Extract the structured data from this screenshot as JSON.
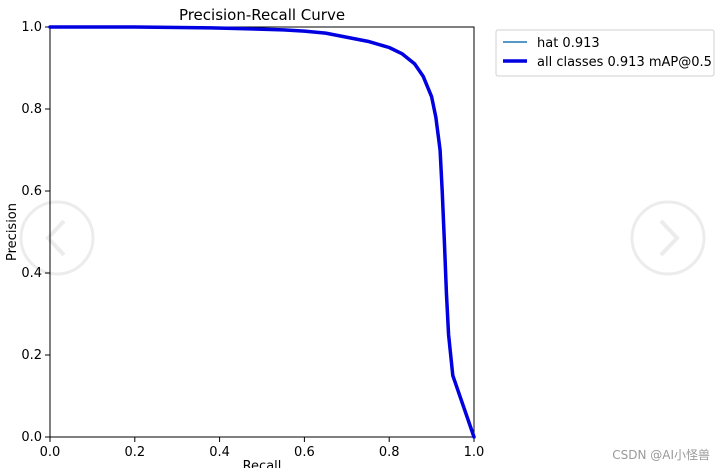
{
  "chart_data": {
    "type": "line",
    "title": "Precision-Recall Curve",
    "xlabel": "Recall",
    "ylabel": "Precision",
    "xlim": [
      0.0,
      1.0
    ],
    "ylim": [
      0.0,
      1.0
    ],
    "x_ticks": [
      "0.0",
      "0.2",
      "0.4",
      "0.6",
      "0.8",
      "1.0"
    ],
    "y_ticks": [
      "0.0",
      "0.2",
      "0.4",
      "0.6",
      "0.8",
      "1.0"
    ],
    "grid": false,
    "legend_position": "outside-top-right",
    "series": [
      {
        "name": "hat 0.913",
        "color": "#1f77b4",
        "style": "thin",
        "x": [
          0.0,
          0.2,
          0.38,
          0.45,
          0.55,
          0.6,
          0.65,
          0.7,
          0.75,
          0.8,
          0.83,
          0.86,
          0.88,
          0.9,
          0.91,
          0.92,
          0.925,
          0.93,
          0.935,
          0.94,
          0.95,
          1.0
        ],
        "y": [
          1.0,
          1.0,
          0.998,
          0.996,
          0.993,
          0.99,
          0.985,
          0.975,
          0.965,
          0.95,
          0.935,
          0.91,
          0.88,
          0.83,
          0.78,
          0.7,
          0.6,
          0.48,
          0.35,
          0.25,
          0.15,
          0.0
        ]
      },
      {
        "name": "all classes 0.913 mAP@0.5",
        "color": "#0000e0",
        "style": "thick",
        "x": [
          0.0,
          0.2,
          0.38,
          0.45,
          0.55,
          0.6,
          0.65,
          0.7,
          0.75,
          0.8,
          0.83,
          0.86,
          0.88,
          0.9,
          0.91,
          0.92,
          0.925,
          0.93,
          0.935,
          0.94,
          0.95,
          1.0
        ],
        "y": [
          1.0,
          1.0,
          0.998,
          0.996,
          0.993,
          0.99,
          0.985,
          0.975,
          0.965,
          0.95,
          0.935,
          0.91,
          0.88,
          0.83,
          0.78,
          0.7,
          0.6,
          0.48,
          0.35,
          0.25,
          0.15,
          0.0
        ]
      }
    ]
  },
  "watermark": {
    "text": "CSDN @AI小怪兽"
  },
  "colors": {
    "axes": "#000000",
    "background": "#ffffff",
    "decor_circle": "#ececec"
  },
  "icons": {
    "left": "chevron-left-icon",
    "right": "chevron-right-icon"
  }
}
